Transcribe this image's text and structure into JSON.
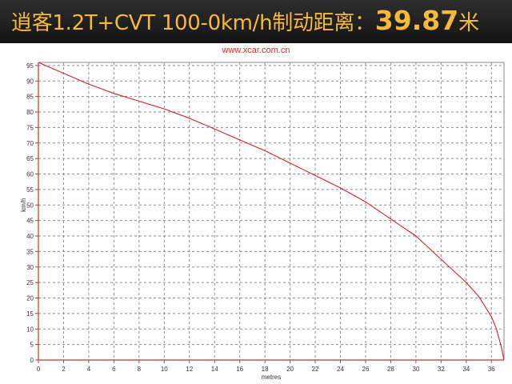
{
  "header": {
    "title_main": "逍客1.2T+CVT 100-0km/h制动距离：",
    "title_value": "39.87",
    "title_unit": "米"
  },
  "watermark": "www.xcar.com.cn",
  "colors": {
    "header_bg": "#1e1e1e",
    "title": "#f6b93b",
    "axis": "#c0392b",
    "curve": "#cc2222",
    "grid": "#8a8a8a",
    "watermark": "#d32b2b"
  },
  "chart_data": {
    "type": "line",
    "title": "",
    "xlabel": "metres",
    "ylabel": "km/h",
    "xlim": [
      0,
      37
    ],
    "ylim": [
      0,
      96
    ],
    "xticks": [
      0,
      2,
      4,
      6,
      8,
      10,
      12,
      14,
      16,
      18,
      20,
      22,
      24,
      26,
      28,
      30,
      32,
      34,
      36
    ],
    "yticks": [
      0,
      5,
      10,
      15,
      20,
      25,
      30,
      35,
      40,
      45,
      50,
      55,
      60,
      65,
      70,
      75,
      80,
      85,
      90,
      95
    ],
    "grid": true,
    "series": [
      {
        "x": [
          0,
          2,
          4,
          6,
          8,
          10,
          12,
          14,
          16,
          18,
          20,
          22,
          24,
          26,
          28,
          30,
          32,
          34,
          35,
          36,
          36.4,
          36.8,
          37
        ],
        "y": [
          96,
          92.5,
          89,
          86,
          83.5,
          81,
          78,
          74.5,
          71,
          67.5,
          63.5,
          59.5,
          55.5,
          51,
          45.5,
          40,
          32.5,
          25,
          20.5,
          14,
          10,
          4,
          0
        ]
      }
    ]
  }
}
